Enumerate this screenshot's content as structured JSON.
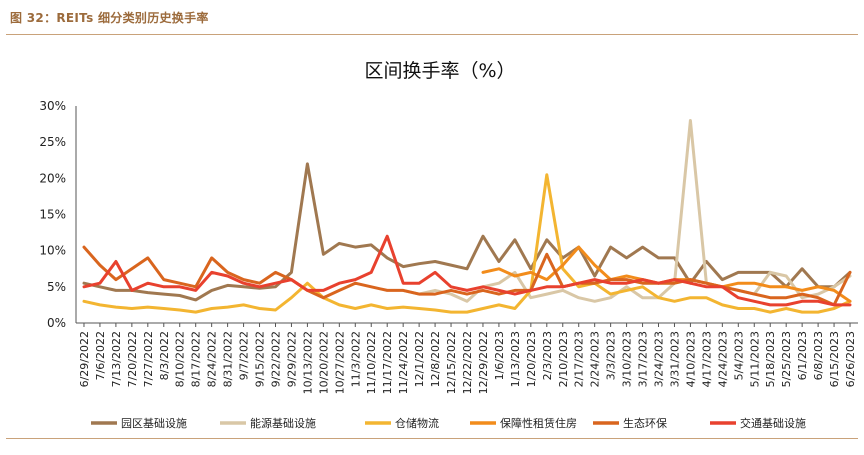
{
  "figure_label": "图 32：REITs 细分类别历史换手率",
  "chart_data": {
    "type": "line",
    "title": "区间换手率（%）",
    "ylim": [
      0,
      30
    ],
    "y_ticks": [
      "0%",
      "5%",
      "10%",
      "15%",
      "20%",
      "25%",
      "30%"
    ],
    "x_tick_labels": [
      "6/29/2022",
      "7/6/2022",
      "7/13/2022",
      "7/20/2022",
      "7/27/2022",
      "8/3/2022",
      "8/10/2022",
      "8/17/2022",
      "8/24/2022",
      "8/31/2022",
      "9/7/2022",
      "9/15/2022",
      "9/22/2022",
      "9/29/2022",
      "10/13/2022",
      "10/20/2022",
      "10/27/2022",
      "11/3/2022",
      "11/10/2022",
      "11/17/2022",
      "11/24/2022",
      "12/1/2022",
      "12/8/2022",
      "12/15/2022",
      "12/22/2022",
      "12/29/2022",
      "1/6/2023",
      "1/13/2023",
      "1/20/2023",
      "2/3/2023",
      "2/10/2023",
      "2/17/2023",
      "2/24/2023",
      "3/3/2023",
      "3/10/2023",
      "3/17/2023",
      "3/24/2023",
      "3/31/2023",
      "4/10/2023",
      "4/17/2023",
      "4/24/2023",
      "5/4/2023",
      "5/11/2023",
      "5/18/2023",
      "5/25/2023",
      "6/1/2023",
      "6/8/2023",
      "6/15/2023",
      "6/26/2023"
    ],
    "series": [
      {
        "name": "园区基础设施",
        "color": "#a07850",
        "start": 0,
        "values": [
          5.5,
          5.0,
          4.5,
          4.5,
          4.2,
          4.0,
          3.8,
          3.2,
          4.5,
          5.2,
          5.0,
          4.8,
          5.0,
          7.0,
          22.0,
          9.5,
          11.0,
          10.5,
          10.8,
          9.0,
          7.8,
          8.2,
          8.5,
          8.0,
          7.5,
          12.0,
          8.5,
          11.5,
          7.5,
          11.5,
          9.0,
          10.5,
          6.5,
          10.5,
          9.0,
          10.5,
          9.0,
          9.0,
          5.5,
          8.5,
          6.0,
          7.0,
          7.0,
          7.0,
          5.0,
          7.5,
          5.0,
          5.0,
          7.0
        ]
      },
      {
        "name": "能源基础设施",
        "color": "#d9c7a6",
        "start": 20,
        "values": [
          4.5,
          4.0,
          4.5,
          4.0,
          3.0,
          5.0,
          5.5,
          7.0,
          3.5,
          4.0,
          4.5,
          3.5,
          3.0,
          3.5,
          5.0,
          3.5,
          3.5,
          5.5,
          28.0,
          5.5,
          5.0,
          4.5,
          4.0,
          7.0,
          6.5,
          3.5,
          4.0,
          5.0,
          6.5
        ]
      },
      {
        "name": "仓储物流",
        "color": "#f3b531",
        "start": 0,
        "values": [
          3.0,
          2.5,
          2.2,
          2.0,
          2.2,
          2.0,
          1.8,
          1.5,
          2.0,
          2.2,
          2.5,
          2.0,
          1.8,
          3.5,
          5.5,
          3.5,
          2.5,
          2.0,
          2.5,
          2.0,
          2.2,
          2.0,
          1.8,
          1.5,
          1.5,
          2.0,
          2.5,
          2.0,
          4.5,
          20.5,
          7.5,
          5.0,
          5.5,
          4.0,
          4.5,
          5.0,
          3.5,
          3.0,
          3.5,
          3.5,
          2.5,
          2.0,
          2.0,
          1.5,
          2.0,
          1.5,
          1.5,
          2.0,
          3.0
        ]
      },
      {
        "name": "保障性租赁住房",
        "color": "#f28c1b",
        "start": 25,
        "values": [
          7.0,
          7.5,
          6.5,
          7.0,
          6.0,
          8.0,
          10.5,
          8.0,
          6.0,
          6.5,
          6.0,
          5.5,
          6.0,
          6.0,
          5.5,
          5.0,
          5.5,
          5.5,
          5.0,
          5.0,
          4.5,
          5.0,
          4.5,
          3.0
        ]
      },
      {
        "name": "生态环保",
        "color": "#d9651e",
        "start": 0,
        "values": [
          10.5,
          8.0,
          6.0,
          7.5,
          9.0,
          6.0,
          5.5,
          5.0,
          9.0,
          7.0,
          6.0,
          5.5,
          7.0,
          6.0,
          4.5,
          3.5,
          4.5,
          5.5,
          5.0,
          4.5,
          4.5,
          4.0,
          4.0,
          4.5,
          4.0,
          4.5,
          4.0,
          4.5,
          4.5,
          9.5,
          5.0,
          5.5,
          5.5,
          6.0,
          6.0,
          5.5,
          5.5,
          5.5,
          6.0,
          5.5,
          5.0,
          4.5,
          4.0,
          3.5,
          3.5,
          4.0,
          3.5,
          2.5,
          7.0
        ]
      },
      {
        "name": "交通基础设施",
        "color": "#e8412e",
        "start": 0,
        "values": [
          5.0,
          5.5,
          8.5,
          4.5,
          5.5,
          5.0,
          5.0,
          4.5,
          7.0,
          6.5,
          5.5,
          5.0,
          5.5,
          6.0,
          4.5,
          4.5,
          5.5,
          6.0,
          7.0,
          12.0,
          5.5,
          5.5,
          7.0,
          5.0,
          4.5,
          5.0,
          4.5,
          4.0,
          4.5,
          5.0,
          5.0,
          5.5,
          6.0,
          5.5,
          5.5,
          6.0,
          5.5,
          6.0,
          5.5,
          5.0,
          5.0,
          3.5,
          3.0,
          2.5,
          2.5,
          3.0,
          3.0,
          2.5,
          2.5
        ]
      }
    ]
  }
}
